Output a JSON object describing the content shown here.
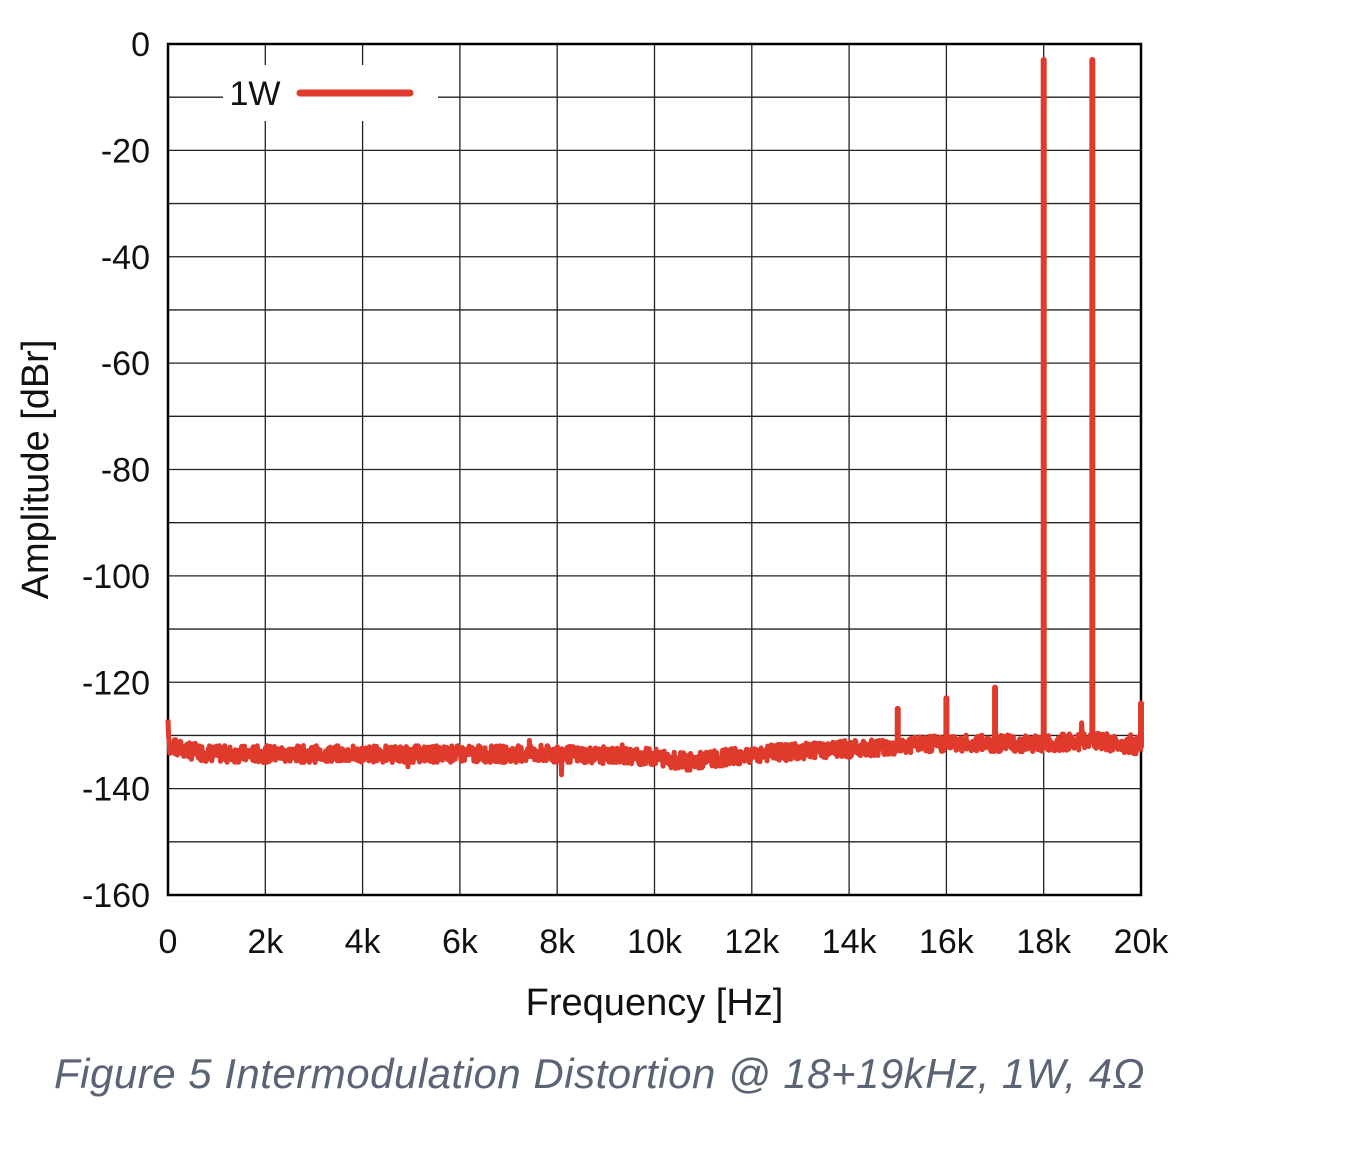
{
  "caption": "Figure 5 Intermodulation Distortion @ 18+19kHz, 1W, 4Ω",
  "chart_data": {
    "type": "line",
    "title": "",
    "xlabel": "Frequency [Hz]",
    "ylabel": "Amplitude [dBr]",
    "xlim": [
      0,
      20000
    ],
    "ylim": [
      -160,
      0
    ],
    "x_ticks": [
      0,
      2000,
      4000,
      6000,
      8000,
      10000,
      12000,
      14000,
      16000,
      18000,
      20000
    ],
    "x_tick_labels": [
      "0",
      "2k",
      "4k",
      "6k",
      "8k",
      "10k",
      "12k",
      "14k",
      "16k",
      "18k",
      "20k"
    ],
    "y_ticks": [
      0,
      -20,
      -40,
      -60,
      -80,
      -100,
      -120,
      -140,
      -160
    ],
    "y_tick_labels": [
      "0",
      "-20",
      "-40",
      "-60",
      "-80",
      "-100",
      "-120",
      "-140",
      "-160"
    ],
    "grid": true,
    "legend": {
      "position": "top-left"
    },
    "series": [
      {
        "name": "1W",
        "color": "#e03a2c",
        "noise_floor": [
          [
            0,
            -127
          ],
          [
            30,
            -132
          ],
          [
            500,
            -133
          ],
          [
            1000,
            -133.5
          ],
          [
            2000,
            -133.5
          ],
          [
            4000,
            -133.5
          ],
          [
            6000,
            -133.5
          ],
          [
            8000,
            -133.5
          ],
          [
            10000,
            -134
          ],
          [
            10700,
            -135
          ],
          [
            12000,
            -133.5
          ],
          [
            13000,
            -133
          ],
          [
            14000,
            -132.5
          ],
          [
            15000,
            -132
          ],
          [
            16000,
            -131.5
          ],
          [
            17000,
            -131.5
          ],
          [
            18000,
            -131.5
          ],
          [
            19000,
            -131
          ],
          [
            20000,
            -132
          ]
        ],
        "peaks": [
          {
            "x": 15000,
            "y": -125
          },
          {
            "x": 16000,
            "y": -123
          },
          {
            "x": 17000,
            "y": -121
          },
          {
            "x": 18000,
            "y": -3
          },
          {
            "x": 19000,
            "y": -3
          },
          {
            "x": 20000,
            "y": -124
          }
        ]
      }
    ]
  }
}
